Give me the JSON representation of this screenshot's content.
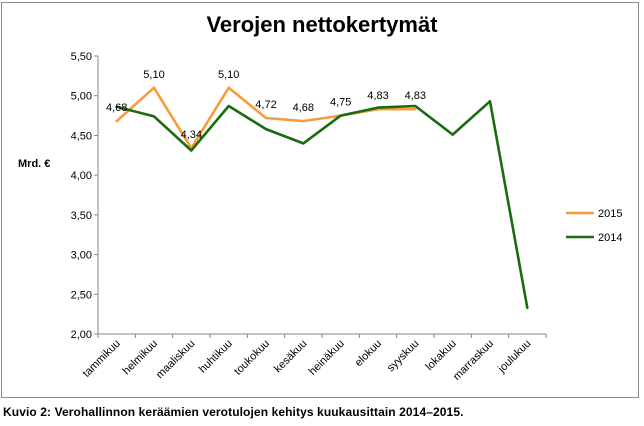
{
  "chart_data": {
    "type": "line",
    "title": "Verojen nettokertymät",
    "ylabel": "Mrd. €",
    "xlabel": "",
    "ylim": [
      2.0,
      5.5
    ],
    "yticks": [
      "2,00",
      "2,50",
      "3,00",
      "3,50",
      "4,00",
      "4,50",
      "5,00",
      "5,50"
    ],
    "ytick_values": [
      2.0,
      2.5,
      3.0,
      3.5,
      4.0,
      4.5,
      5.0,
      5.5
    ],
    "categories": [
      "tammikuu",
      "helmikuu",
      "maaliskuu",
      "huhtikuu",
      "toukokuu",
      "kesäkuu",
      "heinäkuu",
      "elokuu",
      "syyskuu",
      "lokakuu",
      "marraskuu",
      "joulukuu"
    ],
    "legend_position": "right",
    "grid": false,
    "series": [
      {
        "name": "2015",
        "color": "#f79b3c",
        "values": [
          4.68,
          5.1,
          4.34,
          5.1,
          4.72,
          4.68,
          4.75,
          4.83,
          4.83,
          null,
          null,
          null
        ],
        "labels": [
          "4,68",
          "5,10",
          "4,34",
          "5,10",
          "4,72",
          "4,68",
          "4,75",
          "4,83",
          "4,83",
          null,
          null,
          null
        ]
      },
      {
        "name": "2014",
        "color": "#1a6b10",
        "values": [
          4.86,
          4.74,
          4.31,
          4.87,
          4.58,
          4.4,
          4.75,
          4.85,
          4.87,
          4.51,
          4.93,
          2.33
        ]
      }
    ]
  },
  "caption": "Kuvio 2: Verohallinnon keräämien verotulojen kehitys kuukausittain 2014–2015."
}
